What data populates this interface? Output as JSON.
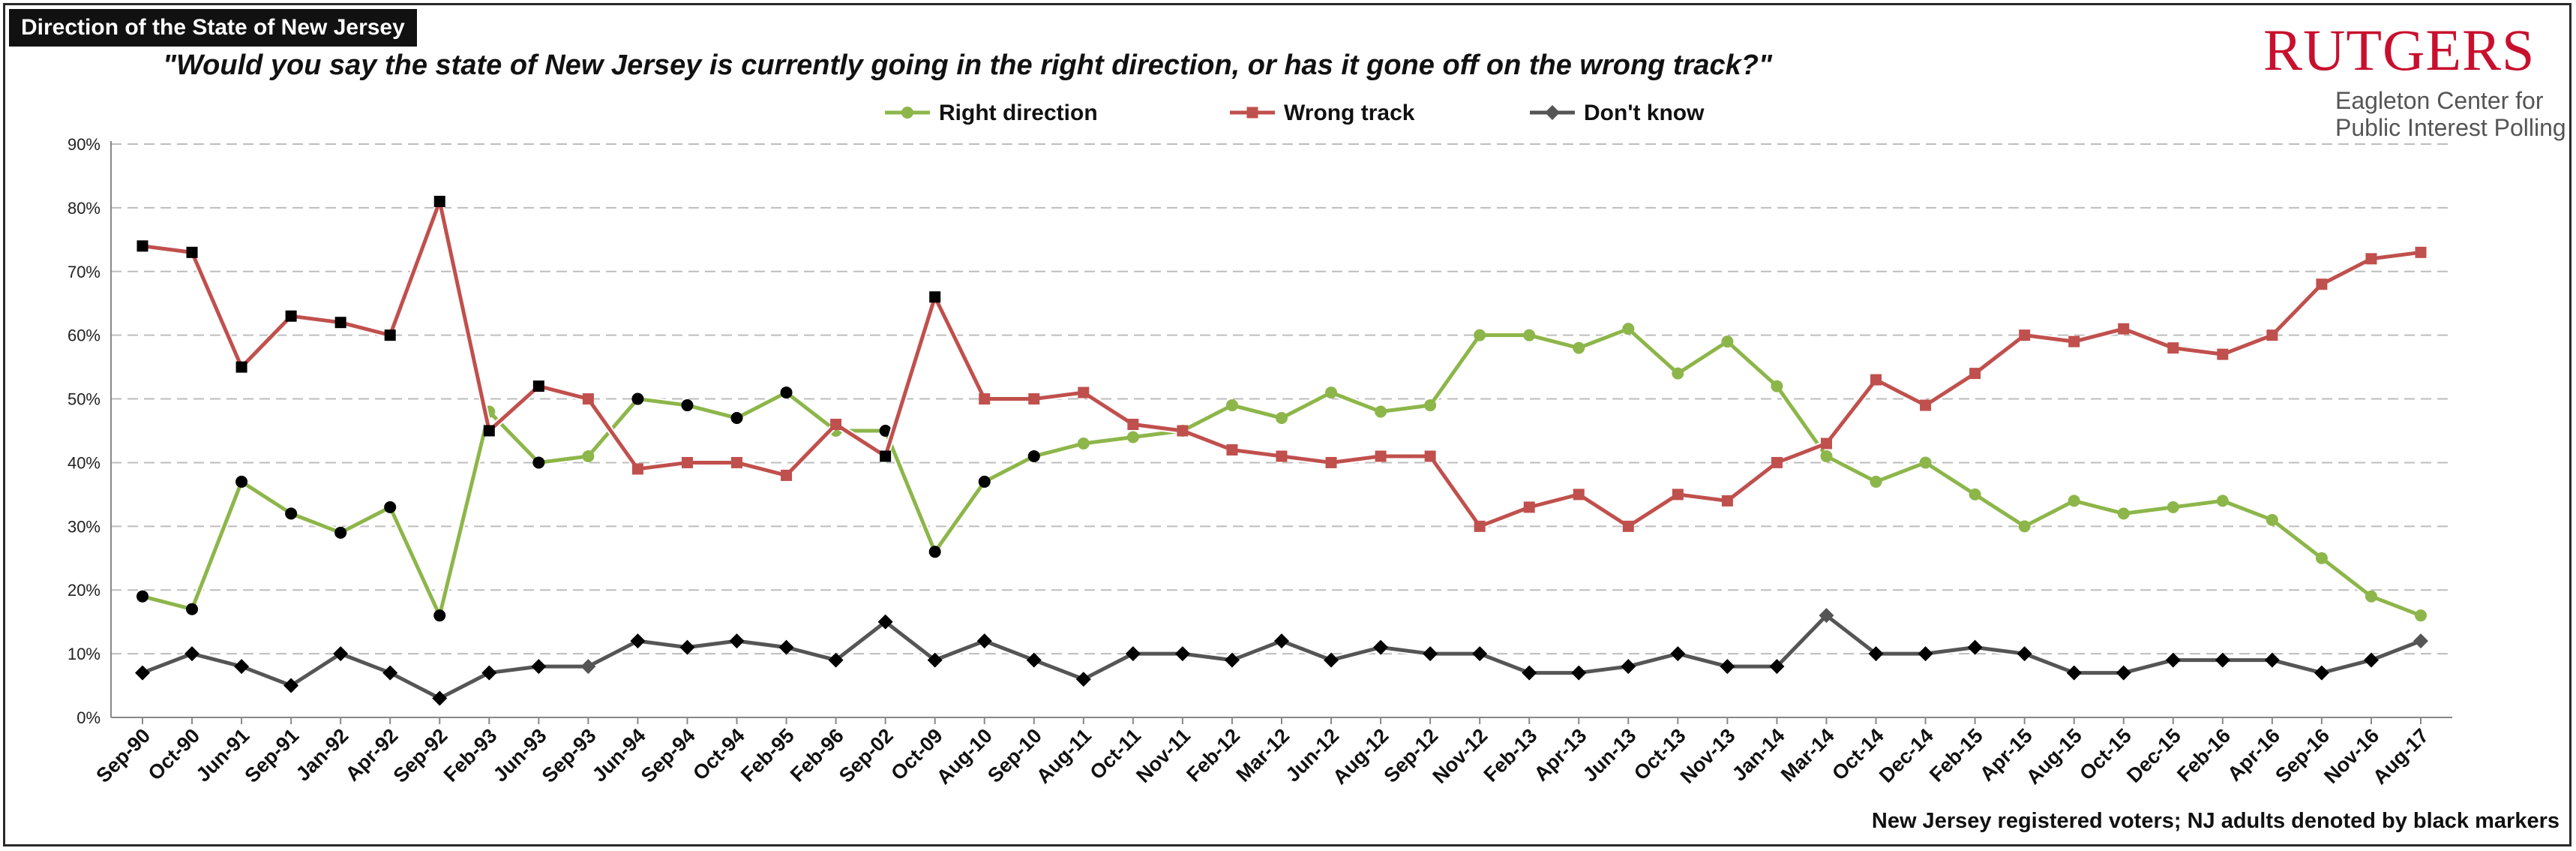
{
  "header": {
    "title": "Direction of the State of New Jersey",
    "question": "\"Would you say the state of New Jersey is currently going in the right direction, or has it gone off on the wrong track?\""
  },
  "logo": {
    "wordmark": "RUTGERS",
    "line1": "Eagleton Center for",
    "line2": "Public Interest Polling",
    "color": "#c8102e"
  },
  "footnote": "New Jersey registered voters; NJ adults denoted by black markers",
  "chart_data": {
    "type": "line",
    "grid": true,
    "legend_placement": "top-center",
    "ylim": [
      0,
      90
    ],
    "yticks": [
      "0%",
      "10%",
      "20%",
      "30%",
      "40%",
      "50%",
      "60%",
      "70%",
      "80%",
      "90%"
    ],
    "categories": [
      "Sep-90",
      "Oct-90",
      "Jun-91",
      "Sep-91",
      "Jan-92",
      "Apr-92",
      "Sep-92",
      "Feb-93",
      "Jun-93",
      "Sep-93",
      "Jun-94",
      "Sep-94",
      "Oct-94",
      "Feb-95",
      "Feb-96",
      "Sep-02",
      "Oct-09",
      "Aug-10",
      "Sep-10",
      "Aug-11",
      "Oct-11",
      "Nov-11",
      "Feb-12",
      "Mar-12",
      "Jun-12",
      "Aug-12",
      "Sep-12",
      "Nov-12",
      "Feb-13",
      "Apr-13",
      "Jun-13",
      "Oct-13",
      "Nov-13",
      "Jan-14",
      "Mar-14",
      "Oct-14",
      "Dec-14",
      "Feb-15",
      "Apr-15",
      "Aug-15",
      "Oct-15",
      "Dec-15",
      "Feb-16",
      "Apr-16",
      "Sep-16",
      "Nov-16",
      "Aug-17"
    ],
    "series": [
      {
        "name": "Right direction",
        "color": "#8db64a",
        "marker": "circle",
        "values": [
          19,
          17,
          37,
          32,
          29,
          33,
          16,
          48,
          40,
          41,
          50,
          49,
          47,
          51,
          45,
          45,
          26,
          37,
          41,
          43,
          44,
          45,
          49,
          47,
          51,
          48,
          49,
          60,
          60,
          58,
          61,
          54,
          59,
          52,
          41,
          37,
          40,
          35,
          30,
          34,
          32,
          33,
          34,
          31,
          25,
          19,
          16
        ],
        "adult_marker_indices": [
          0,
          1,
          2,
          3,
          4,
          5,
          6,
          8,
          10,
          11,
          12,
          13,
          15,
          16,
          17,
          18
        ]
      },
      {
        "name": "Wrong track",
        "color": "#c0504d",
        "marker": "square",
        "values": [
          74,
          73,
          55,
          63,
          62,
          60,
          81,
          45,
          52,
          50,
          39,
          40,
          40,
          38,
          46,
          41,
          66,
          50,
          50,
          51,
          46,
          45,
          42,
          41,
          40,
          41,
          41,
          30,
          33,
          35,
          30,
          35,
          34,
          40,
          43,
          53,
          49,
          54,
          60,
          59,
          61,
          58,
          57,
          60,
          68,
          72,
          73
        ],
        "adult_marker_indices": [
          0,
          1,
          2,
          3,
          4,
          5,
          6,
          7,
          8,
          15,
          16
        ]
      },
      {
        "name": "Don't know",
        "color": "#555555",
        "marker": "diamond",
        "values": [
          7,
          10,
          8,
          5,
          10,
          7,
          3,
          7,
          8,
          8,
          12,
          11,
          12,
          11,
          9,
          15,
          9,
          12,
          9,
          6,
          10,
          10,
          9,
          12,
          9,
          11,
          10,
          10,
          7,
          7,
          8,
          10,
          8,
          8,
          16,
          10,
          10,
          11,
          10,
          7,
          7,
          9,
          9,
          9,
          7,
          9,
          12
        ],
        "adult_marker_indices": [
          0,
          1,
          2,
          3,
          4,
          5,
          6,
          7,
          8,
          10,
          11,
          12,
          13,
          14,
          15,
          16,
          17,
          18,
          19,
          20,
          21,
          22,
          23,
          24,
          25,
          26,
          27,
          28,
          29,
          30,
          31,
          32,
          33,
          35,
          36,
          37,
          38,
          39,
          40,
          41,
          42,
          43,
          44,
          45
        ]
      }
    ]
  }
}
